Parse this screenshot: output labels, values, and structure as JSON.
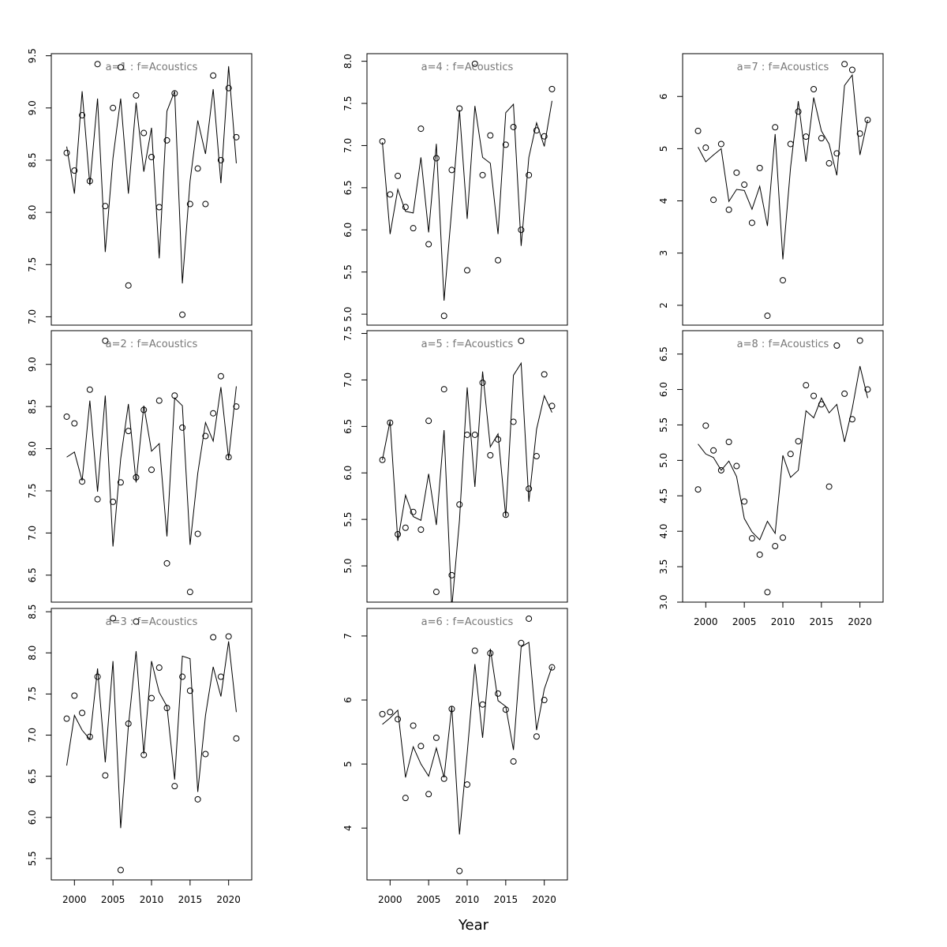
{
  "xlabel": "Year",
  "chart_data": [
    {
      "type": "line",
      "title": "a=1 : f=Acoustics",
      "x": [
        1999,
        2000,
        2001,
        2002,
        2003,
        2004,
        2005,
        2006,
        2007,
        2008,
        2009,
        2010,
        2011,
        2012,
        2013,
        2014,
        2015,
        2016,
        2017,
        2018,
        2019,
        2020,
        2021
      ],
      "series": [
        {
          "style": "points",
          "color": "#000000",
          "values": [
            8.57,
            8.4,
            8.93,
            8.3,
            9.42,
            8.06,
            9.0,
            9.39,
            7.3,
            9.12,
            8.76,
            8.53,
            8.05,
            8.69,
            9.14,
            7.02,
            8.08,
            8.42,
            8.08,
            9.31,
            8.5,
            9.19,
            8.72
          ]
        },
        {
          "style": "line",
          "color": "#000000",
          "values": [
            8.63,
            8.18,
            9.16,
            8.26,
            9.09,
            7.62,
            8.52,
            9.09,
            8.18,
            9.05,
            8.39,
            8.81,
            7.56,
            8.97,
            9.16,
            7.32,
            8.3,
            8.88,
            8.56,
            9.18,
            8.28,
            9.4,
            8.47
          ]
        }
      ],
      "xlim": [
        1997,
        2023
      ],
      "ylim": [
        6.92,
        9.52
      ],
      "yticks": [
        {
          "value": 7,
          "label": "7.0"
        },
        7.5,
        {
          "value": 8,
          "label": "8.0"
        },
        8.5,
        {
          "value": 9,
          "label": "9.0"
        },
        9.5
      ]
    },
    {
      "type": "line",
      "title": "a=2 : f=Acoustics",
      "x": [
        1999,
        2000,
        2001,
        2002,
        2003,
        2004,
        2005,
        2006,
        2007,
        2008,
        2009,
        2010,
        2011,
        2012,
        2013,
        2014,
        2015,
        2016,
        2017,
        2018,
        2019,
        2020,
        2021
      ],
      "series": [
        {
          "style": "points",
          "color": "#000000",
          "values": [
            8.38,
            8.3,
            7.61,
            8.7,
            7.4,
            9.28,
            7.37,
            7.6,
            8.21,
            7.66,
            8.46,
            7.75,
            8.57,
            6.64,
            8.63,
            8.25,
            6.3,
            6.99,
            8.15,
            8.42,
            8.86,
            7.9,
            8.5
          ]
        },
        {
          "style": "line",
          "color": "#000000",
          "values": [
            7.9,
            7.96,
            7.62,
            8.57,
            7.49,
            8.63,
            6.84,
            7.88,
            8.53,
            7.6,
            8.51,
            7.97,
            8.06,
            6.96,
            8.6,
            8.51,
            6.86,
            7.71,
            8.31,
            8.09,
            8.73,
            7.88,
            8.74
          ]
        }
      ],
      "xlim": [
        1997,
        2023
      ],
      "ylim": [
        6.18,
        9.4
      ],
      "yticks": [
        6.5,
        {
          "value": 7,
          "label": "7.0"
        },
        7.5,
        {
          "value": 8,
          "label": "8.0"
        },
        8.5,
        {
          "value": 9,
          "label": "9.0"
        }
      ]
    },
    {
      "type": "line",
      "title": "a=3 : f=Acoustics",
      "x": [
        1999,
        2000,
        2001,
        2002,
        2003,
        2004,
        2005,
        2006,
        2007,
        2008,
        2009,
        2010,
        2011,
        2012,
        2013,
        2014,
        2015,
        2016,
        2017,
        2018,
        2019,
        2020,
        2021
      ],
      "series": [
        {
          "style": "points",
          "color": "#000000",
          "values": [
            7.2,
            7.48,
            7.27,
            6.98,
            7.71,
            6.51,
            8.42,
            5.36,
            7.14,
            8.38,
            6.76,
            7.45,
            7.82,
            7.33,
            6.38,
            7.71,
            7.54,
            6.22,
            6.77,
            8.19,
            7.71,
            8.2,
            6.96
          ]
        },
        {
          "style": "line",
          "color": "#000000",
          "values": [
            6.63,
            7.24,
            7.06,
            6.95,
            7.81,
            6.67,
            7.9,
            5.87,
            7.11,
            8.02,
            6.77,
            7.9,
            7.52,
            7.35,
            6.46,
            7.96,
            7.93,
            6.31,
            7.24,
            7.83,
            7.47,
            8.14,
            7.28
          ]
        }
      ],
      "xlim": [
        1997,
        2023
      ],
      "ylim": [
        5.24,
        8.54
      ],
      "yticks": [
        5.5,
        {
          "value": 6,
          "label": "6.0"
        },
        6.5,
        {
          "value": 7,
          "label": "7.0"
        },
        7.5,
        {
          "value": 8,
          "label": "8.0"
        },
        8.5
      ],
      "xticks": [
        2000,
        2005,
        2010,
        2015,
        2020
      ]
    },
    {
      "type": "line",
      "title": "a=4 : f=Acoustics",
      "x": [
        1999,
        2000,
        2001,
        2002,
        2003,
        2004,
        2005,
        2006,
        2007,
        2008,
        2009,
        2010,
        2011,
        2012,
        2013,
        2014,
        2015,
        2016,
        2017,
        2018,
        2019,
        2020,
        2021
      ],
      "series": [
        {
          "style": "points",
          "color": "#000000",
          "values": [
            7.05,
            6.42,
            6.64,
            6.27,
            6.02,
            7.2,
            5.83,
            6.85,
            4.98,
            6.71,
            7.44,
            5.52,
            7.97,
            6.65,
            7.12,
            5.64,
            7.01,
            7.22,
            6.0,
            6.65,
            7.18,
            7.11,
            7.67
          ]
        },
        {
          "style": "line",
          "color": "#000000",
          "values": [
            7.04,
            5.95,
            6.48,
            6.22,
            6.2,
            6.86,
            5.97,
            7.02,
            5.16,
            6.25,
            7.42,
            6.13,
            7.47,
            6.86,
            6.79,
            5.95,
            7.39,
            7.49,
            5.81,
            6.86,
            7.27,
            6.99,
            7.53
          ]
        }
      ],
      "xlim": [
        1997,
        2023
      ],
      "ylim": [
        4.87,
        8.09
      ],
      "yticks": [
        {
          "value": 5,
          "label": "5.0"
        },
        5.5,
        {
          "value": 6,
          "label": "6.0"
        },
        6.5,
        {
          "value": 7,
          "label": "7.0"
        },
        7.5,
        {
          "value": 8,
          "label": "8.0"
        }
      ]
    },
    {
      "type": "line",
      "title": "a=5 : f=Acoustics",
      "x": [
        1999,
        2000,
        2001,
        2002,
        2003,
        2004,
        2005,
        2006,
        2007,
        2008,
        2009,
        2010,
        2011,
        2012,
        2013,
        2014,
        2015,
        2016,
        2017,
        2018,
        2019,
        2020,
        2021
      ],
      "series": [
        {
          "style": "points",
          "color": "#000000",
          "values": [
            6.14,
            6.54,
            5.34,
            5.41,
            5.58,
            5.39,
            6.56,
            4.72,
            6.9,
            4.9,
            5.66,
            6.41,
            6.41,
            6.97,
            6.19,
            6.36,
            5.55,
            6.55,
            7.42,
            5.83,
            6.18,
            7.06,
            6.72
          ]
        },
        {
          "style": "line",
          "color": "#000000",
          "values": [
            6.14,
            6.56,
            5.27,
            5.76,
            5.53,
            5.49,
            5.99,
            5.44,
            6.46,
            4.55,
            5.49,
            6.92,
            5.85,
            7.09,
            6.28,
            6.42,
            5.53,
            7.05,
            7.18,
            5.69,
            6.47,
            6.83,
            6.65
          ]
        }
      ],
      "xlim": [
        1997,
        2023
      ],
      "ylim": [
        4.61,
        7.53
      ],
      "yticks": [
        {
          "value": 5,
          "label": "5.0"
        },
        5.5,
        {
          "value": 6,
          "label": "6.0"
        },
        6.5,
        {
          "value": 7,
          "label": "7.0"
        },
        7.5
      ]
    },
    {
      "type": "line",
      "title": "a=6 : f=Acoustics",
      "x": [
        1999,
        2000,
        2001,
        2002,
        2003,
        2004,
        2005,
        2006,
        2007,
        2008,
        2009,
        2010,
        2011,
        2012,
        2013,
        2014,
        2015,
        2016,
        2017,
        2018,
        2019,
        2020,
        2021
      ],
      "series": [
        {
          "style": "points",
          "color": "#000000",
          "values": [
            5.78,
            5.81,
            5.7,
            4.47,
            5.6,
            5.28,
            4.53,
            5.41,
            4.77,
            5.86,
            3.33,
            4.68,
            6.77,
            5.93,
            6.73,
            6.1,
            5.85,
            5.04,
            6.89,
            7.27,
            5.43,
            6.0,
            6.51
          ]
        },
        {
          "style": "line",
          "color": "#000000",
          "values": [
            5.62,
            5.72,
            5.84,
            4.79,
            5.27,
            5.0,
            4.81,
            5.25,
            4.79,
            5.9,
            3.9,
            5.17,
            6.56,
            5.41,
            6.8,
            5.99,
            5.9,
            5.22,
            6.83,
            6.9,
            5.53,
            6.17,
            6.52
          ]
        }
      ],
      "xlim": [
        1997,
        2023
      ],
      "ylim": [
        3.19,
        7.43
      ],
      "yticks": [
        4,
        5,
        6,
        7
      ],
      "xticks": [
        2000,
        2005,
        2010,
        2015,
        2020
      ]
    },
    {
      "type": "line",
      "title": "a=7 : f=Acoustics",
      "x": [
        1999,
        2000,
        2001,
        2002,
        2003,
        2004,
        2005,
        2006,
        2007,
        2008,
        2009,
        2010,
        2011,
        2012,
        2013,
        2014,
        2015,
        2016,
        2017,
        2018,
        2019,
        2020,
        2021
      ],
      "series": [
        {
          "style": "points",
          "color": "#000000",
          "values": [
            5.34,
            5.02,
            4.02,
            5.09,
            3.83,
            4.54,
            4.31,
            3.58,
            4.63,
            1.8,
            5.41,
            2.48,
            5.09,
            5.71,
            5.23,
            6.14,
            5.2,
            4.72,
            4.91,
            6.62,
            6.51,
            5.29,
            5.55
          ]
        },
        {
          "style": "line",
          "color": "#000000",
          "values": [
            5.03,
            4.75,
            4.88,
            5.0,
            3.99,
            4.22,
            4.2,
            3.84,
            4.28,
            3.52,
            5.28,
            2.88,
            4.64,
            5.91,
            4.75,
            5.98,
            5.34,
            5.09,
            4.49,
            6.21,
            6.41,
            4.88,
            5.55
          ]
        }
      ],
      "xlim": [
        1997,
        2023
      ],
      "ylim": [
        1.62,
        6.82
      ],
      "yticks": [
        2,
        3,
        4,
        5,
        6
      ]
    },
    {
      "type": "line",
      "title": "a=8 : f=Acoustics",
      "x": [
        1999,
        2000,
        2001,
        2002,
        2003,
        2004,
        2005,
        2006,
        2007,
        2008,
        2009,
        2010,
        2011,
        2012,
        2013,
        2014,
        2015,
        2016,
        2017,
        2018,
        2019,
        2020,
        2021
      ],
      "series": [
        {
          "style": "points",
          "color": "#000000",
          "values": [
            4.59,
            5.49,
            5.14,
            4.86,
            5.26,
            4.92,
            4.42,
            3.9,
            3.67,
            3.14,
            3.79,
            3.91,
            5.09,
            5.27,
            6.06,
            5.91,
            5.79,
            4.63,
            6.62,
            5.94,
            5.58,
            6.69,
            6.0
          ]
        },
        {
          "style": "line",
          "color": "#000000",
          "values": [
            5.23,
            5.09,
            5.04,
            4.86,
            4.99,
            4.77,
            4.18,
            3.99,
            3.88,
            4.14,
            3.97,
            5.07,
            4.76,
            4.86,
            5.7,
            5.6,
            5.88,
            5.67,
            5.79,
            5.26,
            5.73,
            6.33,
            5.88
          ]
        }
      ],
      "xlim": [
        1997,
        2023
      ],
      "ylim": [
        3.0,
        6.83
      ],
      "yticks": [
        {
          "value": 3,
          "label": "3.0"
        },
        3.5,
        {
          "value": 4,
          "label": "4.0"
        },
        4.5,
        {
          "value": 5,
          "label": "5.0"
        },
        5.5,
        {
          "value": 6,
          "label": "6.0"
        },
        6.5
      ],
      "xticks": [
        2000,
        2005,
        2010,
        2015,
        2020
      ]
    }
  ]
}
